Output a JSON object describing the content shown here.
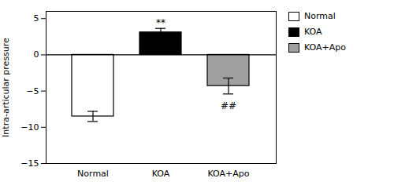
{
  "chart_data": {
    "type": "bar",
    "categories": [
      "Normal",
      "KOA",
      "KOA+Apo"
    ],
    "values": [
      -8.5,
      3.1,
      -4.3
    ],
    "errors": [
      0.7,
      0.55,
      1.1
    ],
    "colors": [
      "#ffffff",
      "#000000",
      "#a0a0a0"
    ],
    "ylabel": "Intra-articular pressure",
    "ylim": [
      -15,
      6
    ],
    "yticks": [
      -15,
      -10,
      -5,
      0,
      5
    ],
    "hline": 0,
    "annotations": [
      {
        "text": "**",
        "x": "KOA",
        "y": 4.0
      },
      {
        "text": "##",
        "x": "KOA+Apo",
        "y": -7.5
      }
    ],
    "legend": "right",
    "grid": false
  }
}
